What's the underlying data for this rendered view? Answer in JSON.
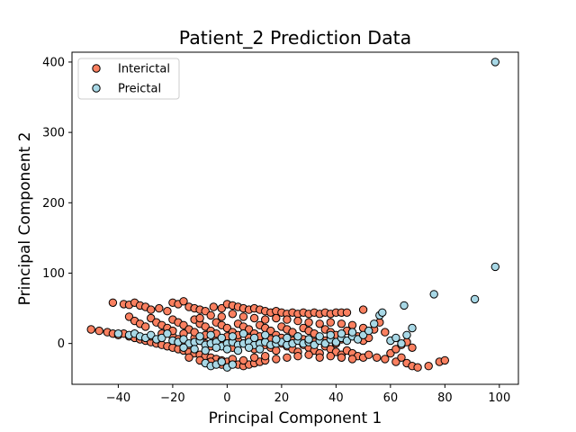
{
  "chart_data": {
    "type": "scatter",
    "title": "Patient_2 Prediction Data",
    "xlabel": "Principal Component 1",
    "ylabel": "Principal Component 2",
    "xlim": [
      -57,
      107
    ],
    "ylim": [
      -58,
      414
    ],
    "xticks": [
      -40,
      -20,
      0,
      20,
      40,
      60,
      80,
      100
    ],
    "yticks": [
      0,
      100,
      200,
      300,
      400
    ],
    "xtick_labels": [
      "−40",
      "−20",
      "0",
      "20",
      "40",
      "60",
      "80",
      "100"
    ],
    "ytick_labels": [
      "0",
      "100",
      "200",
      "300",
      "400"
    ],
    "legend_position": "upper-left",
    "grid": false,
    "series": [
      {
        "name": "Interictal",
        "color": "#fa8060",
        "edge_color": "#000000",
        "points": [
          [
            -50,
            20
          ],
          [
            -47,
            18
          ],
          [
            -44,
            16
          ],
          [
            -42,
            14
          ],
          [
            -40,
            12
          ],
          [
            -38,
            14
          ],
          [
            -36,
            10
          ],
          [
            -34,
            8
          ],
          [
            -32,
            6
          ],
          [
            -30,
            4
          ],
          [
            -28,
            2
          ],
          [
            -26,
            0
          ],
          [
            -24,
            -2
          ],
          [
            -22,
            -4
          ],
          [
            -20,
            -6
          ],
          [
            -18,
            -8
          ],
          [
            -16,
            -10
          ],
          [
            -14,
            -12
          ],
          [
            -12,
            -14
          ],
          [
            -10,
            -16
          ],
          [
            -8,
            -18
          ],
          [
            -6,
            -20
          ],
          [
            -4,
            -22
          ],
          [
            -2,
            -24
          ],
          [
            0,
            -26
          ],
          [
            2,
            -28
          ],
          [
            4,
            -30
          ],
          [
            6,
            -32
          ],
          [
            8,
            -30
          ],
          [
            10,
            -28
          ],
          [
            12,
            -26
          ],
          [
            14,
            -24
          ],
          [
            -42,
            58
          ],
          [
            -38,
            56
          ],
          [
            -36,
            55
          ],
          [
            -34,
            58
          ],
          [
            -32,
            54
          ],
          [
            -30,
            52
          ],
          [
            -28,
            48
          ],
          [
            -25,
            50
          ],
          [
            -22,
            46
          ],
          [
            -20,
            58
          ],
          [
            -18,
            56
          ],
          [
            -16,
            60
          ],
          [
            -14,
            52
          ],
          [
            -12,
            50
          ],
          [
            -10,
            48
          ],
          [
            -8,
            46
          ],
          [
            -5,
            52
          ],
          [
            -2,
            50
          ],
          [
            0,
            56
          ],
          [
            2,
            54
          ],
          [
            4,
            52
          ],
          [
            6,
            50
          ],
          [
            8,
            48
          ],
          [
            10,
            50
          ],
          [
            12,
            48
          ],
          [
            14,
            46
          ],
          [
            16,
            44
          ],
          [
            18,
            46
          ],
          [
            20,
            44
          ],
          [
            22,
            42
          ],
          [
            24,
            44
          ],
          [
            26,
            42
          ],
          [
            28,
            44
          ],
          [
            30,
            42
          ],
          [
            32,
            44
          ],
          [
            34,
            42
          ],
          [
            36,
            44
          ],
          [
            38,
            42
          ],
          [
            40,
            44
          ],
          [
            42,
            44
          ],
          [
            44,
            44
          ],
          [
            50,
            48
          ],
          [
            56,
            30
          ],
          [
            -36,
            38
          ],
          [
            -34,
            32
          ],
          [
            -32,
            28
          ],
          [
            -30,
            24
          ],
          [
            -28,
            36
          ],
          [
            -26,
            30
          ],
          [
            -24,
            26
          ],
          [
            -22,
            22
          ],
          [
            -20,
            34
          ],
          [
            -18,
            30
          ],
          [
            -16,
            26
          ],
          [
            -14,
            20
          ],
          [
            -12,
            34
          ],
          [
            -10,
            28
          ],
          [
            -8,
            24
          ],
          [
            -6,
            18
          ],
          [
            -4,
            30
          ],
          [
            -2,
            26
          ],
          [
            0,
            22
          ],
          [
            2,
            16
          ],
          [
            4,
            28
          ],
          [
            6,
            24
          ],
          [
            8,
            20
          ],
          [
            10,
            14
          ],
          [
            12,
            26
          ],
          [
            14,
            22
          ],
          [
            16,
            18
          ],
          [
            18,
            12
          ],
          [
            20,
            24
          ],
          [
            22,
            20
          ],
          [
            24,
            16
          ],
          [
            26,
            10
          ],
          [
            28,
            22
          ],
          [
            30,
            18
          ],
          [
            32,
            14
          ],
          [
            34,
            8
          ],
          [
            36,
            20
          ],
          [
            38,
            16
          ],
          [
            40,
            12
          ],
          [
            42,
            6
          ],
          [
            44,
            18
          ],
          [
            46,
            14
          ],
          [
            48,
            10
          ],
          [
            50,
            4
          ],
          [
            52,
            8
          ],
          [
            -20,
            10
          ],
          [
            -18,
            6
          ],
          [
            -16,
            2
          ],
          [
            -14,
            -2
          ],
          [
            -12,
            8
          ],
          [
            -10,
            4
          ],
          [
            -8,
            0
          ],
          [
            -6,
            -4
          ],
          [
            -4,
            6
          ],
          [
            -2,
            2
          ],
          [
            0,
            -2
          ],
          [
            2,
            -6
          ],
          [
            4,
            4
          ],
          [
            6,
            0
          ],
          [
            8,
            -4
          ],
          [
            10,
            -8
          ],
          [
            12,
            2
          ],
          [
            14,
            -2
          ],
          [
            16,
            -6
          ],
          [
            18,
            -10
          ],
          [
            20,
            0
          ],
          [
            22,
            -4
          ],
          [
            24,
            -8
          ],
          [
            26,
            -12
          ],
          [
            28,
            -2
          ],
          [
            30,
            -6
          ],
          [
            32,
            -10
          ],
          [
            34,
            -14
          ],
          [
            36,
            -4
          ],
          [
            38,
            -8
          ],
          [
            40,
            -12
          ],
          [
            42,
            -16
          ],
          [
            44,
            -10
          ],
          [
            46,
            -14
          ],
          [
            48,
            -18
          ],
          [
            50,
            -20
          ],
          [
            52,
            -16
          ],
          [
            55,
            -20
          ],
          [
            58,
            -22
          ],
          [
            62,
            -26
          ],
          [
            64,
            -20
          ],
          [
            66,
            -28
          ],
          [
            68,
            -32
          ],
          [
            70,
            -34
          ],
          [
            74,
            -32
          ],
          [
            78,
            -26
          ],
          [
            80,
            -24
          ],
          [
            60,
            -14
          ],
          [
            62,
            -8
          ],
          [
            64,
            -2
          ],
          [
            66,
            2
          ],
          [
            68,
            -6
          ],
          [
            -10,
            36
          ],
          [
            -6,
            40
          ],
          [
            -2,
            38
          ],
          [
            2,
            42
          ],
          [
            6,
            38
          ],
          [
            10,
            36
          ],
          [
            14,
            34
          ],
          [
            18,
            36
          ],
          [
            22,
            34
          ],
          [
            26,
            32
          ],
          [
            30,
            30
          ],
          [
            34,
            28
          ],
          [
            38,
            30
          ],
          [
            42,
            28
          ],
          [
            46,
            26
          ],
          [
            50,
            22
          ],
          [
            54,
            20
          ],
          [
            58,
            16
          ],
          [
            -28,
            10
          ],
          [
            -24,
            14
          ],
          [
            -20,
            18
          ],
          [
            -16,
            14
          ],
          [
            -12,
            16
          ],
          [
            -8,
            12
          ],
          [
            -4,
            14
          ],
          [
            0,
            10
          ],
          [
            4,
            12
          ],
          [
            8,
            8
          ],
          [
            12,
            10
          ],
          [
            16,
            6
          ],
          [
            20,
            8
          ],
          [
            24,
            4
          ],
          [
            28,
            6
          ],
          [
            32,
            2
          ],
          [
            36,
            4
          ],
          [
            40,
            0
          ],
          [
            -14,
            -20
          ],
          [
            -10,
            -24
          ],
          [
            -6,
            -26
          ],
          [
            -2,
            -30
          ],
          [
            2,
            -22
          ],
          [
            6,
            -24
          ],
          [
            10,
            -20
          ],
          [
            14,
            -18
          ],
          [
            18,
            -22
          ],
          [
            22,
            -20
          ],
          [
            26,
            -18
          ],
          [
            30,
            -16
          ],
          [
            34,
            -20
          ],
          [
            38,
            -18
          ],
          [
            42,
            -20
          ],
          [
            46,
            -22
          ]
        ]
      },
      {
        "name": "Preictal",
        "color": "#a8d8e6",
        "edge_color": "#000000",
        "points": [
          [
            -36,
            12
          ],
          [
            -34,
            14
          ],
          [
            -32,
            10
          ],
          [
            -30,
            8
          ],
          [
            -28,
            12
          ],
          [
            -26,
            6
          ],
          [
            -24,
            8
          ],
          [
            -22,
            14
          ],
          [
            -20,
            4
          ],
          [
            -18,
            2
          ],
          [
            -16,
            6
          ],
          [
            -14,
            0
          ],
          [
            -12,
            2
          ],
          [
            -10,
            4
          ],
          [
            -8,
            -2
          ],
          [
            -6,
            0
          ],
          [
            -4,
            2
          ],
          [
            -2,
            -4
          ],
          [
            0,
            0
          ],
          [
            2,
            2
          ],
          [
            4,
            -2
          ],
          [
            6,
            0
          ],
          [
            8,
            2
          ],
          [
            10,
            -2
          ],
          [
            12,
            0
          ],
          [
            14,
            2
          ],
          [
            16,
            -2
          ],
          [
            18,
            0
          ],
          [
            20,
            2
          ],
          [
            22,
            -2
          ],
          [
            24,
            0
          ],
          [
            26,
            4
          ],
          [
            28,
            0
          ],
          [
            30,
            2
          ],
          [
            32,
            -2
          ],
          [
            34,
            4
          ],
          [
            36,
            0
          ],
          [
            38,
            6
          ],
          [
            40,
            2
          ],
          [
            42,
            8
          ],
          [
            44,
            4
          ],
          [
            46,
            10
          ],
          [
            48,
            6
          ],
          [
            50,
            12
          ],
          [
            52,
            18
          ],
          [
            54,
            28
          ],
          [
            56,
            40
          ],
          [
            57,
            44
          ],
          [
            60,
            4
          ],
          [
            62,
            8
          ],
          [
            64,
            0
          ],
          [
            66,
            12
          ],
          [
            68,
            22
          ],
          [
            65,
            54
          ],
          [
            76,
            70
          ],
          [
            91,
            63
          ],
          [
            98.5,
            109
          ],
          [
            98.5,
            400
          ],
          [
            -8,
            -28
          ],
          [
            -6,
            -32
          ],
          [
            -4,
            -30
          ],
          [
            -2,
            -26
          ],
          [
            0,
            -34
          ],
          [
            2,
            -30
          ],
          [
            -16,
            -6
          ],
          [
            -12,
            -8
          ],
          [
            -8,
            -10
          ],
          [
            -4,
            -6
          ],
          [
            0,
            -8
          ],
          [
            4,
            -10
          ],
          [
            8,
            -6
          ],
          [
            12,
            -8
          ],
          [
            -10,
            10
          ],
          [
            -6,
            12
          ],
          [
            -2,
            8
          ],
          [
            2,
            10
          ],
          [
            6,
            14
          ],
          [
            10,
            8
          ],
          [
            14,
            12
          ],
          [
            18,
            6
          ],
          [
            22,
            8
          ],
          [
            26,
            10
          ],
          [
            30,
            6
          ],
          [
            34,
            10
          ],
          [
            38,
            12
          ],
          [
            42,
            14
          ],
          [
            46,
            16
          ],
          [
            -40,
            14
          ]
        ]
      }
    ]
  }
}
